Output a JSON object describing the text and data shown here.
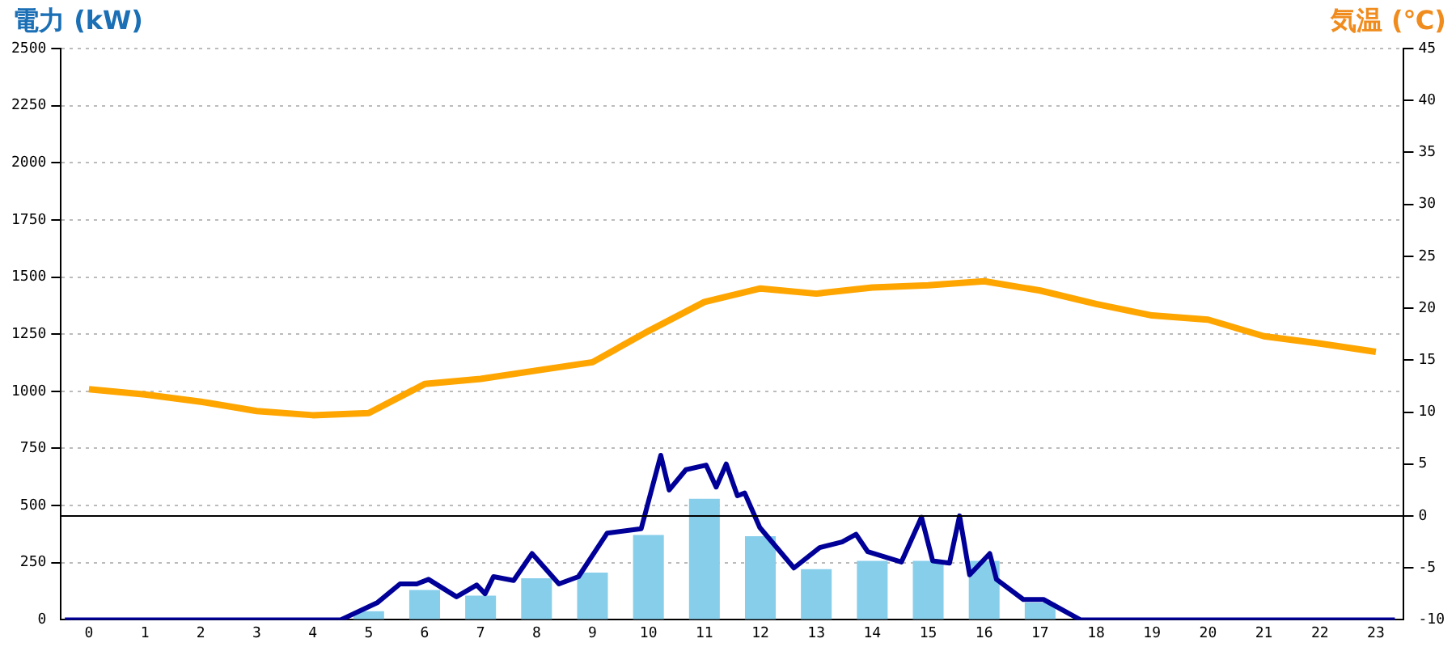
{
  "chart_data": {
    "type": "bar",
    "ylabel": "電力 (kW)",
    "y2label": "気温 (℃)",
    "x": [
      0,
      1,
      2,
      3,
      4,
      5,
      6,
      7,
      8,
      9,
      10,
      11,
      12,
      13,
      14,
      15,
      16,
      17,
      18,
      19,
      20,
      21,
      22,
      23
    ],
    "series": [
      {
        "color": "#87ceeb",
        "values": [
          0,
          0,
          0,
          0,
          0,
          38,
          131,
          106,
          182,
          207,
          371,
          530,
          366,
          222,
          258,
          258,
          258,
          76,
          0,
          0,
          0,
          0,
          0,
          0
        ]
      },
      {
        "type": "line",
        "color": "#000099",
        "x": [
          -0.43,
          4.5,
          5.16,
          5.56,
          5.86,
          6.07,
          6.57,
          6.93,
          7.08,
          7.23,
          7.59,
          7.92,
          8.4,
          8.75,
          9.26,
          9.87,
          10.22,
          10.37,
          10.67,
          11.03,
          11.21,
          11.39,
          11.59,
          11.72,
          11.99,
          12.6,
          13.06,
          13.46,
          13.71,
          13.92,
          14.52,
          14.88,
          15.08,
          15.38,
          15.56,
          15.74,
          16.1,
          16.22,
          16.7,
          17.06,
          17.72,
          23.34
        ],
        "values": [
          0,
          0,
          76,
          157,
          157,
          177,
          101,
          152,
          114,
          189,
          172,
          290,
          157,
          189,
          379,
          399,
          720,
          568,
          657,
          677,
          581,
          682,
          543,
          555,
          404,
          227,
          316,
          341,
          374,
          298,
          253,
          449,
          258,
          248,
          455,
          197,
          290,
          177,
          89,
          89,
          0,
          0
        ]
      },
      {
        "type": "line",
        "axis": "y2",
        "color": "#ffa500",
        "values": [
          12.2,
          11.7,
          11.0,
          10.1,
          9.7,
          9.9,
          12.7,
          13.2,
          14.0,
          14.8,
          17.8,
          20.6,
          21.9,
          21.4,
          22.0,
          22.2,
          22.6,
          21.7,
          20.4,
          19.3,
          18.9,
          17.3,
          16.6,
          15.8
        ]
      }
    ],
    "xlim": [
      -0.5,
      23.5
    ],
    "xticks": [
      0,
      1,
      2,
      3,
      4,
      5,
      6,
      7,
      8,
      9,
      10,
      11,
      12,
      13,
      14,
      15,
      16,
      17,
      18,
      19,
      20,
      21,
      22,
      23
    ],
    "ylim": [
      0,
      2500
    ],
    "yticks": [
      0,
      250,
      500,
      750,
      1000,
      1250,
      1500,
      1750,
      2000,
      2250,
      2500
    ],
    "y2lim": [
      -10,
      45
    ],
    "y2ticks": [
      -10,
      -5,
      0,
      5,
      10,
      15,
      20,
      25,
      30,
      35,
      40,
      45
    ],
    "ref_lines": [
      {
        "axis": "y2",
        "value": 0,
        "color": "#000000"
      }
    ],
    "grid": "y"
  }
}
